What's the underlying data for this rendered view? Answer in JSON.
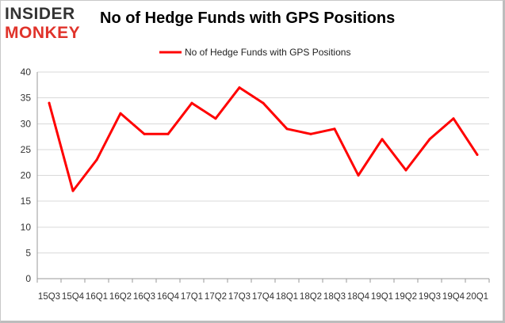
{
  "logo": {
    "line1": "INSIDER",
    "line2": "MONKEY"
  },
  "chart_data": {
    "type": "line",
    "title": "No of Hedge Funds with GPS Positions",
    "categories": [
      "15Q3",
      "15Q4",
      "16Q1",
      "16Q2",
      "16Q3",
      "16Q4",
      "17Q1",
      "17Q2",
      "17Q3",
      "17Q4",
      "18Q1",
      "18Q2",
      "18Q3",
      "18Q4",
      "19Q1",
      "19Q2",
      "19Q3",
      "19Q4",
      "20Q1"
    ],
    "series": [
      {
        "name": "No of Hedge Funds with GPS Positions",
        "values": [
          34,
          17,
          23,
          32,
          28,
          28,
          34,
          31,
          37,
          34,
          29,
          28,
          29,
          20,
          27,
          21,
          27,
          31,
          24
        ],
        "color": "#ff0000"
      }
    ],
    "ylim": [
      0,
      40
    ],
    "yticks": [
      0,
      5,
      10,
      15,
      20,
      25,
      30,
      35,
      40
    ],
    "grid": true,
    "legend": "top-center",
    "xlabel": "",
    "ylabel": ""
  }
}
